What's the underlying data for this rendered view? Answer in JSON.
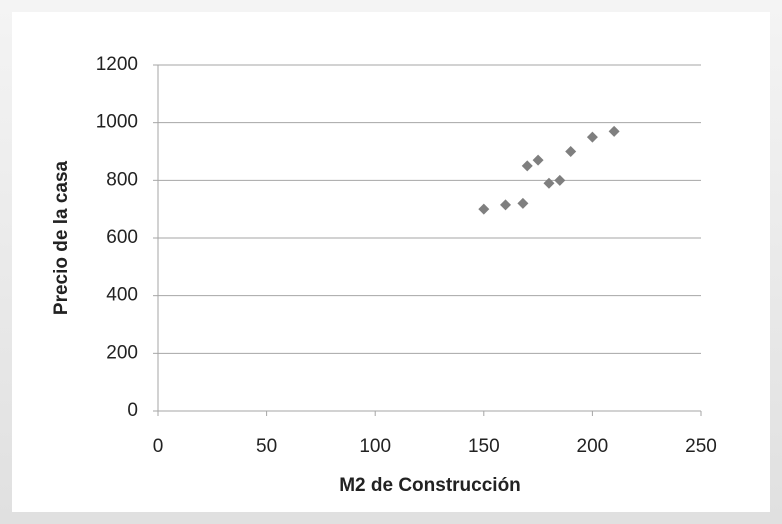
{
  "chart_data": {
    "type": "scatter",
    "x_label": "M2 de Construcción",
    "y_label": "Precio de la casa",
    "x": [
      150,
      160,
      168,
      170,
      175,
      180,
      185,
      190,
      200,
      210
    ],
    "series": [
      {
        "color": "#7f7f7f",
        "values": [
          700,
          715,
          720,
          850,
          870,
          790,
          800,
          900,
          950,
          970
        ]
      }
    ],
    "xlim": [
      0,
      250
    ],
    "xticks": [
      0,
      50,
      100,
      150,
      200,
      250
    ],
    "ylim": [
      0,
      1200
    ],
    "yticks": [
      0,
      200,
      400,
      600,
      800,
      1000,
      1200
    ],
    "grid": true
  }
}
